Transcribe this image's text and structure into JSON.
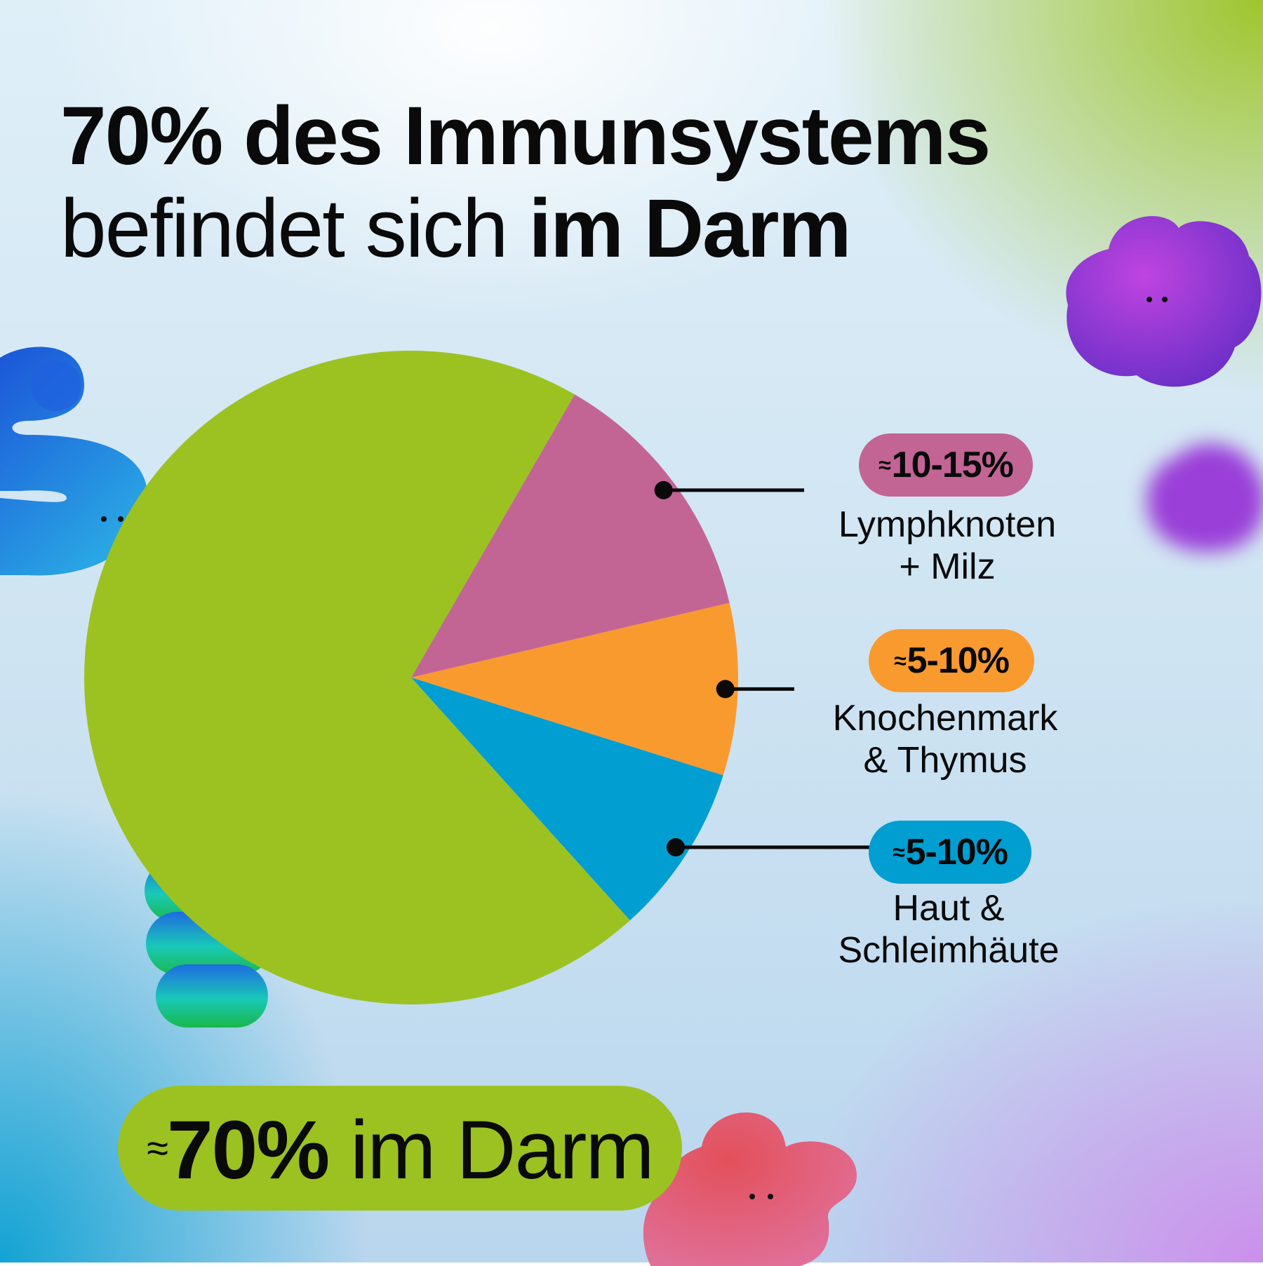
{
  "title": {
    "line1_bold": "70% des Immunsystems",
    "line2_regular": "befindet sich ",
    "line2_bold": "im Darm"
  },
  "chart_data": {
    "type": "pie",
    "title": "70% des Immunsystems befindet sich im Darm",
    "slices": [
      {
        "name": "Darm",
        "value": 70,
        "label": "≈70% im Darm",
        "color": "#9bc221"
      },
      {
        "name": "Lymphknoten + Milz",
        "value": 13,
        "label": "≈10-15%",
        "color": "#c36594"
      },
      {
        "name": "Knochenmark & Thymus",
        "value": 8.5,
        "label": "≈5-10%",
        "color": "#f99a2f"
      },
      {
        "name": "Haut & Schleimhäute",
        "value": 8.5,
        "label": "≈5-10%",
        "color": "#019ed1"
      }
    ]
  },
  "callouts": [
    {
      "approx": "≈",
      "value": "10-15%",
      "line1": "Lymphknoten",
      "line2": "+ Milz",
      "color": "#c36594"
    },
    {
      "approx": "≈",
      "value": "5-10%",
      "line1": "Knochenmark",
      "line2": "& Thymus",
      "color": "#f99a2f"
    },
    {
      "approx": "≈",
      "value": "5-10%",
      "line1": "Haut &",
      "line2": "Schleimhäute",
      "color": "#019ed1"
    }
  ],
  "bottom": {
    "approx": "≈",
    "value": "70%",
    "text": " im Darm",
    "color": "#9bc221"
  }
}
